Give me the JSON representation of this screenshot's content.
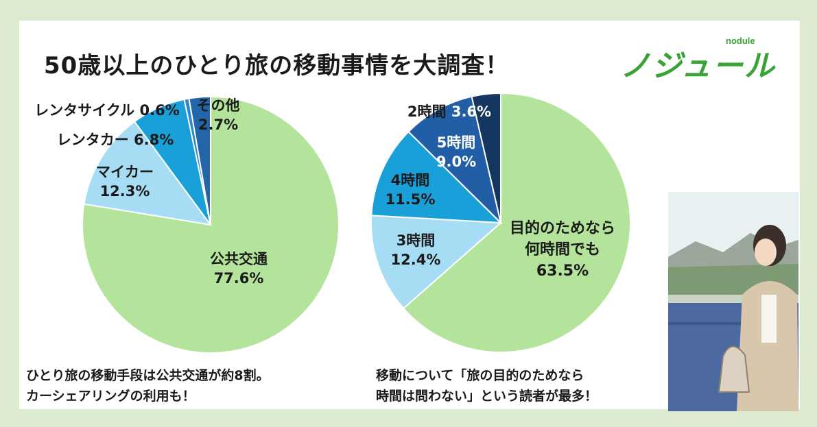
{
  "title": "50歳以上のひとり旅の移動事情を大調査！",
  "logo": {
    "sub": "nodule",
    "main": "ノジュール"
  },
  "captions": {
    "left": [
      "ひとり旅の移動手段は公共交通が約8割。",
      "カーシェアリングの利用も！"
    ],
    "right": [
      "移動について「旅の目的のためなら",
      "時間は問わない」という読者が最多！"
    ]
  },
  "colors": {
    "background": "#dcebd0",
    "panel": "#ffffff",
    "accent": "#3aa335"
  },
  "chart_data": [
    {
      "type": "pie",
      "title": "",
      "slices": [
        {
          "label": "公共交通",
          "value": 77.6,
          "display": "77.6%",
          "color": "#b4e49c"
        },
        {
          "label": "マイカー",
          "value": 12.3,
          "display": "12.3%",
          "color": "#a6ddf5"
        },
        {
          "label": "レンタカー",
          "value": 6.8,
          "display": "6.8%",
          "color": "#1aa0d8"
        },
        {
          "label": "レンタサイクル",
          "value": 0.6,
          "display": "0.6%",
          "color": "#2c88cc"
        },
        {
          "label": "その他",
          "value": 2.7,
          "display": "2.7%",
          "color": "#2266a8"
        }
      ]
    },
    {
      "type": "pie",
      "title": "",
      "slices": [
        {
          "label": "目的のためなら何時間でも",
          "value": 63.5,
          "display": "63.5%",
          "color": "#b4e49c"
        },
        {
          "label": "3時間",
          "value": 12.4,
          "display": "12.4%",
          "color": "#a6ddf5"
        },
        {
          "label": "4時間",
          "value": 11.5,
          "display": "11.5%",
          "color": "#1aa0d8"
        },
        {
          "label": "5時間",
          "value": 9.0,
          "display": "9.0%",
          "color": "#225ea6"
        },
        {
          "label": "2時間",
          "value": 3.6,
          "display": "3.6%",
          "color": "#15365f"
        }
      ]
    }
  ]
}
